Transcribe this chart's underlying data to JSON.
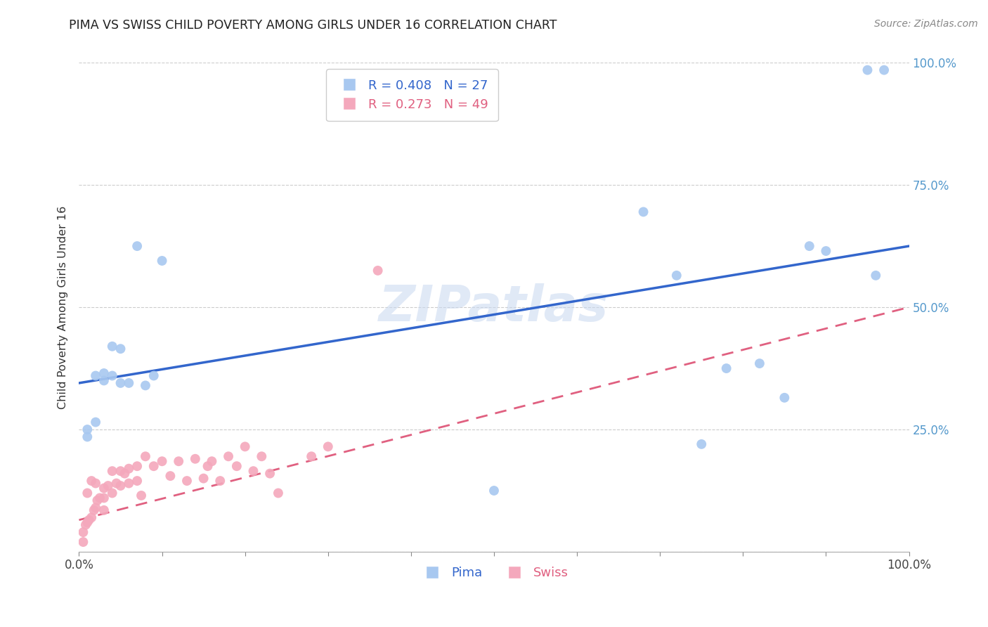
{
  "title": "PIMA VS SWISS CHILD POVERTY AMONG GIRLS UNDER 16 CORRELATION CHART",
  "source": "Source: ZipAtlas.com",
  "ylabel": "Child Poverty Among Girls Under 16",
  "xlim": [
    0,
    1
  ],
  "ylim": [
    0,
    1
  ],
  "xticks": [
    0,
    0.1,
    0.2,
    0.3,
    0.4,
    0.5,
    0.6,
    0.7,
    0.8,
    0.9,
    1.0
  ],
  "yticks": [
    0,
    0.25,
    0.5,
    0.75,
    1.0
  ],
  "watermark": "ZIPatlas",
  "pima_color": "#A8C8F0",
  "swiss_color": "#F4A8BC",
  "pima_line_color": "#3366CC",
  "swiss_line_color": "#E06080",
  "pima_x": [
    0.01,
    0.01,
    0.02,
    0.02,
    0.03,
    0.03,
    0.04,
    0.04,
    0.05,
    0.05,
    0.06,
    0.07,
    0.08,
    0.09,
    0.1,
    0.5,
    0.68,
    0.72,
    0.75,
    0.78,
    0.82,
    0.85,
    0.88,
    0.9,
    0.95,
    0.96,
    0.97
  ],
  "pima_y": [
    0.25,
    0.235,
    0.265,
    0.36,
    0.365,
    0.35,
    0.42,
    0.36,
    0.415,
    0.345,
    0.345,
    0.625,
    0.34,
    0.36,
    0.595,
    0.125,
    0.695,
    0.565,
    0.22,
    0.375,
    0.385,
    0.315,
    0.625,
    0.615,
    0.985,
    0.565,
    0.985
  ],
  "swiss_x": [
    0.005,
    0.005,
    0.008,
    0.01,
    0.01,
    0.012,
    0.015,
    0.015,
    0.018,
    0.02,
    0.02,
    0.022,
    0.025,
    0.03,
    0.03,
    0.03,
    0.035,
    0.04,
    0.04,
    0.045,
    0.05,
    0.05,
    0.055,
    0.06,
    0.06,
    0.07,
    0.07,
    0.075,
    0.08,
    0.09,
    0.1,
    0.11,
    0.12,
    0.13,
    0.14,
    0.15,
    0.155,
    0.16,
    0.17,
    0.18,
    0.19,
    0.2,
    0.21,
    0.22,
    0.23,
    0.24,
    0.28,
    0.3,
    0.36
  ],
  "swiss_y": [
    0.02,
    0.04,
    0.055,
    0.06,
    0.12,
    0.065,
    0.07,
    0.145,
    0.085,
    0.09,
    0.14,
    0.105,
    0.11,
    0.085,
    0.13,
    0.11,
    0.135,
    0.12,
    0.165,
    0.14,
    0.135,
    0.165,
    0.16,
    0.14,
    0.17,
    0.145,
    0.175,
    0.115,
    0.195,
    0.175,
    0.185,
    0.155,
    0.185,
    0.145,
    0.19,
    0.15,
    0.175,
    0.185,
    0.145,
    0.195,
    0.175,
    0.215,
    0.165,
    0.195,
    0.16,
    0.12,
    0.195,
    0.215,
    0.575
  ],
  "pima_line_x": [
    0.0,
    1.0
  ],
  "pima_line_y": [
    0.345,
    0.625
  ],
  "swiss_line_x": [
    0.0,
    1.0
  ],
  "swiss_line_y": [
    0.065,
    0.5
  ]
}
